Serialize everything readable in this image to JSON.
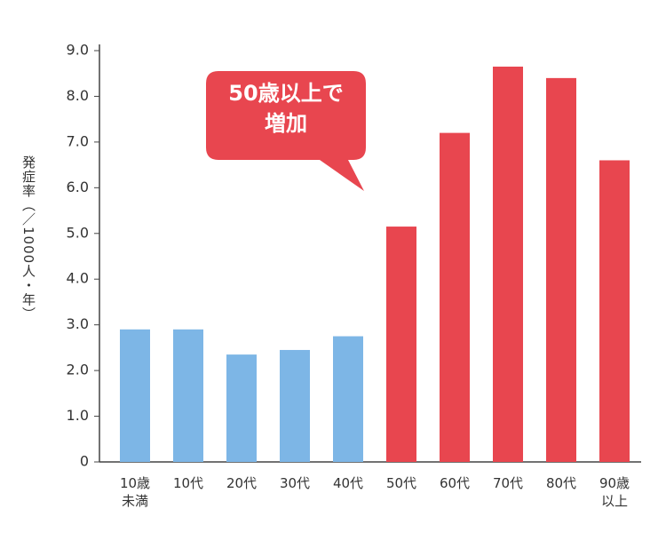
{
  "chart_data": {
    "type": "bar",
    "y_label": "発症率（／1000人・年）",
    "annotation": "50歳以上で\n増加",
    "categories": [
      "10歳\n未満",
      "10代",
      "20代",
      "30代",
      "40代",
      "50代",
      "60代",
      "70代",
      "80代",
      "90歳\n以上"
    ],
    "values": [
      2.9,
      2.9,
      2.35,
      2.45,
      2.75,
      5.15,
      7.2,
      8.65,
      8.4,
      6.6
    ],
    "colors": [
      "#7db6e6",
      "#7db6e6",
      "#7db6e6",
      "#7db6e6",
      "#7db6e6",
      "#e8464f",
      "#e8464f",
      "#e8464f",
      "#e8464f",
      "#e8464f"
    ],
    "ylim": [
      0,
      9
    ],
    "yticks": [
      0,
      {
        "value": 1,
        "label": "1.0"
      },
      {
        "value": 2,
        "label": "2.0"
      },
      {
        "value": 3,
        "label": "3.0"
      },
      {
        "value": 4,
        "label": "4.0"
      },
      {
        "value": 5,
        "label": "5.0"
      },
      {
        "value": 6,
        "label": "6.0"
      },
      {
        "value": 7,
        "label": "7.0"
      },
      {
        "value": 8,
        "label": "8.0"
      },
      {
        "value": 9,
        "label": "9.0"
      }
    ],
    "grid": false
  }
}
